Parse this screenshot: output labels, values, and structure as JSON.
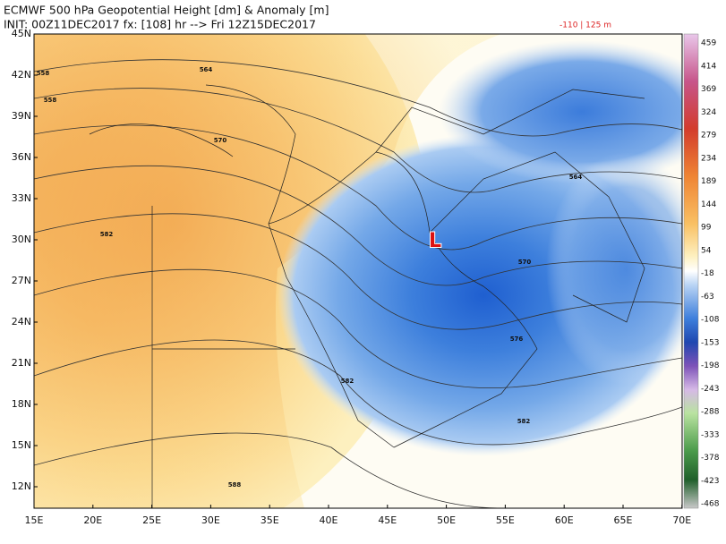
{
  "header": {
    "title": "ECMWF 500 hPa Geopotential Height [dm] & Anomaly [m]",
    "init": "INIT: 00Z11DEC2017 fx: [108] hr --> Fri 12Z15DEC2017",
    "range": "-110 | 125 m"
  },
  "lat_labels": [
    "45N",
    "42N",
    "39N",
    "36N",
    "33N",
    "30N",
    "27N",
    "24N",
    "21N",
    "18N",
    "15N",
    "12N"
  ],
  "lon_labels": [
    "15E",
    "20E",
    "25E",
    "30E",
    "35E",
    "40E",
    "45E",
    "50E",
    "55E",
    "60E",
    "65E",
    "70E"
  ],
  "colorbar_labels": [
    "459",
    "414",
    "369",
    "324",
    "279",
    "234",
    "189",
    "144",
    "99",
    "54",
    "-18",
    "-63",
    "-108",
    "-153",
    "-198",
    "-243",
    "-288",
    "-333",
    "-378",
    "-423",
    "-468"
  ],
  "contour_labels": [
    "558",
    "558",
    "564",
    "570",
    "582",
    "582",
    "564",
    "570",
    "576",
    "582",
    "588"
  ],
  "low_marker": "L"
}
